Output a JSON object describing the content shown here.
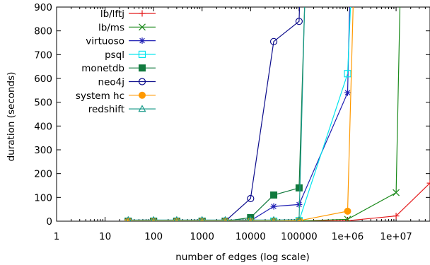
{
  "chart_data": {
    "type": "line",
    "title": "",
    "xlabel": "number of edges (log scale)",
    "ylabel": "duration (seconds)",
    "x_scale": "log",
    "xlim": [
      1,
      50000000
    ],
    "ylim": [
      0,
      900
    ],
    "x_ticks": [
      {
        "value": 1,
        "label": "1"
      },
      {
        "value": 10,
        "label": "10"
      },
      {
        "value": 100,
        "label": "100"
      },
      {
        "value": 1000,
        "label": "1000"
      },
      {
        "value": 10000,
        "label": "10000"
      },
      {
        "value": 100000,
        "label": "100000"
      },
      {
        "value": 1000000,
        "label": "1e+06"
      },
      {
        "value": 10000000,
        "label": "1e+07"
      }
    ],
    "y_ticks": [
      {
        "value": 0,
        "label": "0"
      },
      {
        "value": 100,
        "label": "100"
      },
      {
        "value": 200,
        "label": "200"
      },
      {
        "value": 300,
        "label": "300"
      },
      {
        "value": 400,
        "label": "400"
      },
      {
        "value": 500,
        "label": "500"
      },
      {
        "value": 600,
        "label": "600"
      },
      {
        "value": 700,
        "label": "700"
      },
      {
        "value": 800,
        "label": "800"
      },
      {
        "value": 900,
        "label": "900"
      }
    ],
    "grid": false,
    "legend_position": "top-left",
    "series": [
      {
        "name": "lb/lftj",
        "color": "#e41a1c",
        "marker": "plus",
        "points": [
          [
            30,
            0
          ],
          [
            100,
            0
          ],
          [
            300,
            0
          ],
          [
            1000,
            0
          ],
          [
            3000,
            0
          ],
          [
            10000,
            0
          ],
          [
            30000,
            0
          ],
          [
            100000,
            0
          ],
          [
            1000000,
            2
          ],
          [
            10000000,
            22
          ],
          [
            50000000,
            160
          ]
        ]
      },
      {
        "name": "lb/ms",
        "color": "#1b8a1b",
        "marker": "x",
        "points": [
          [
            30,
            0
          ],
          [
            100,
            0
          ],
          [
            300,
            0
          ],
          [
            1000,
            0
          ],
          [
            3000,
            0
          ],
          [
            10000,
            0
          ],
          [
            30000,
            0
          ],
          [
            100000,
            1
          ],
          [
            1000000,
            8
          ],
          [
            10000000,
            120
          ],
          [
            12000000,
            900
          ]
        ]
      },
      {
        "name": "virtuoso",
        "color": "#1f1fb4",
        "marker": "asterisk",
        "points": [
          [
            30,
            0
          ],
          [
            100,
            0
          ],
          [
            300,
            0
          ],
          [
            1000,
            0
          ],
          [
            3000,
            0
          ],
          [
            10000,
            2
          ],
          [
            30000,
            62
          ],
          [
            100000,
            70
          ],
          [
            1000000,
            540
          ],
          [
            1100000,
            900
          ]
        ]
      },
      {
        "name": "psql",
        "color": "#00e5ee",
        "marker": "square-open",
        "points": [
          [
            30,
            0
          ],
          [
            100,
            0
          ],
          [
            300,
            0
          ],
          [
            1000,
            0
          ],
          [
            3000,
            0
          ],
          [
            10000,
            0
          ],
          [
            30000,
            0
          ],
          [
            100000,
            2
          ],
          [
            1000000,
            620
          ],
          [
            1150000,
            900
          ]
        ]
      },
      {
        "name": "monetdb",
        "color": "#117a3e",
        "marker": "square-filled",
        "points": [
          [
            30,
            0
          ],
          [
            100,
            0
          ],
          [
            300,
            0
          ],
          [
            1000,
            0
          ],
          [
            3000,
            0
          ],
          [
            10000,
            15
          ],
          [
            30000,
            110
          ],
          [
            100000,
            140
          ],
          [
            130000,
            900
          ]
        ]
      },
      {
        "name": "neo4j",
        "color": "#0d0d8c",
        "marker": "circle-open",
        "points": [
          [
            30,
            0
          ],
          [
            100,
            0
          ],
          [
            300,
            0
          ],
          [
            1000,
            0
          ],
          [
            3000,
            0
          ],
          [
            10000,
            95
          ],
          [
            30000,
            755
          ],
          [
            100000,
            840
          ],
          [
            102000,
            900
          ]
        ]
      },
      {
        "name": "system hc",
        "color": "#ff9900",
        "marker": "circle-filled",
        "points": [
          [
            30,
            0
          ],
          [
            100,
            0
          ],
          [
            300,
            0
          ],
          [
            1000,
            0
          ],
          [
            3000,
            0
          ],
          [
            10000,
            0
          ],
          [
            30000,
            0
          ],
          [
            100000,
            2
          ],
          [
            1000000,
            42
          ],
          [
            1300000,
            900
          ]
        ]
      },
      {
        "name": "redshift",
        "color": "#1a9a8a",
        "marker": "triangle-open",
        "points": [
          [
            30,
            5
          ],
          [
            100,
            5
          ],
          [
            300,
            5
          ],
          [
            1000,
            5
          ],
          [
            3000,
            5
          ],
          [
            10000,
            5
          ],
          [
            30000,
            5
          ],
          [
            100000,
            6
          ],
          [
            130000,
            900
          ]
        ]
      }
    ]
  }
}
